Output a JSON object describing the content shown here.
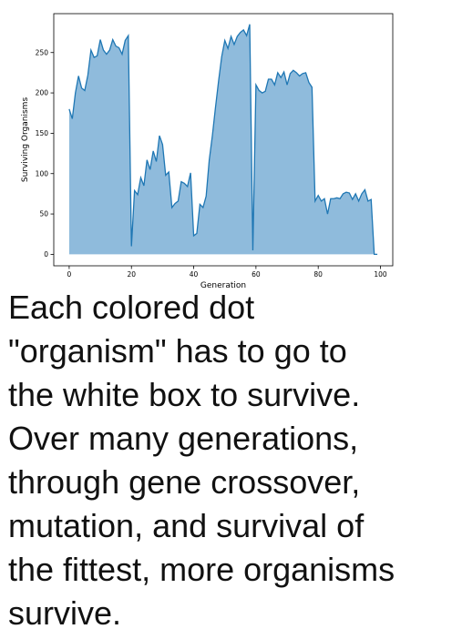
{
  "chart_data": {
    "type": "area",
    "title": "",
    "xlabel": "Generation",
    "ylabel": "Surviving Organisms",
    "xlim": [
      -4.95,
      103.95
    ],
    "ylim": [
      -14.2,
      298.2
    ],
    "xticks": [
      0,
      20,
      40,
      60,
      80,
      100
    ],
    "yticks": [
      0,
      50,
      100,
      150,
      200,
      250
    ],
    "grid": false,
    "fill_color": "#8fbbdc",
    "line_color": "#1f77b4",
    "x": [
      0,
      1,
      2,
      3,
      4,
      5,
      6,
      7,
      8,
      9,
      10,
      11,
      12,
      13,
      14,
      15,
      16,
      17,
      18,
      19,
      20,
      21,
      22,
      23,
      24,
      25,
      26,
      27,
      28,
      29,
      30,
      31,
      32,
      33,
      34,
      35,
      36,
      37,
      38,
      39,
      40,
      41,
      42,
      43,
      44,
      45,
      46,
      47,
      48,
      49,
      50,
      51,
      52,
      53,
      54,
      55,
      56,
      57,
      58,
      59,
      60,
      61,
      62,
      63,
      64,
      65,
      66,
      67,
      68,
      69,
      70,
      71,
      72,
      73,
      74,
      75,
      76,
      77,
      78,
      79,
      80,
      81,
      82,
      83,
      84,
      85,
      86,
      87,
      88,
      89,
      90,
      91,
      92,
      93,
      94,
      95,
      96,
      97,
      98,
      99
    ],
    "y": [
      180,
      168,
      200,
      221,
      206,
      203,
      222,
      253,
      244,
      246,
      266,
      253,
      248,
      253,
      266,
      258,
      256,
      248,
      265,
      271,
      10,
      79,
      74,
      95,
      85,
      117,
      105,
      128,
      115,
      147,
      136,
      98,
      102,
      58,
      63,
      66,
      90,
      88,
      84,
      101,
      23,
      26,
      62,
      58,
      72,
      117,
      147,
      182,
      215,
      245,
      265,
      255,
      270,
      260,
      270,
      275,
      278,
      271,
      285,
      5,
      210,
      203,
      200,
      202,
      217,
      217,
      210,
      225,
      219,
      226,
      210,
      224,
      228,
      225,
      221,
      224,
      225,
      213,
      207,
      66,
      73,
      66,
      69,
      50,
      69,
      69,
      70,
      69,
      75,
      77,
      76,
      68,
      75,
      66,
      75,
      80,
      66,
      68,
      0,
      0
    ],
    "series": [
      {
        "values_ref": "y"
      }
    ]
  },
  "caption": {
    "text": "Each colored dot\n\"organism\"  has to go to\nthe white box to survive.\nOver many generations,\nthrough gene crossover,\nmutation, and survival of\nthe fittest, more organisms\nsurvive."
  }
}
